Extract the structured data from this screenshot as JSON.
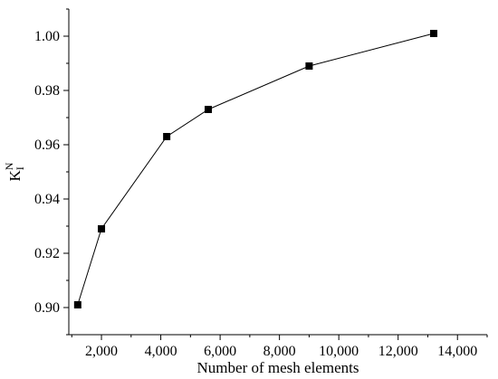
{
  "chart_data": {
    "type": "line",
    "title": "",
    "xlabel": "Number of mesh elements",
    "ylabel": {
      "main": "K",
      "sub": "I",
      "sup": "N"
    },
    "xlim": [
      900,
      15000
    ],
    "ylim": [
      0.89,
      1.01
    ],
    "xticks": [
      2000,
      4000,
      6000,
      8000,
      10000,
      12000,
      14000
    ],
    "xtick_labels": [
      "2,000",
      "4,000",
      "6,000",
      "8,000",
      "10,000",
      "12,000",
      "14,000"
    ],
    "yticks": [
      0.9,
      0.92,
      0.94,
      0.96,
      0.98,
      1.0
    ],
    "ytick_labels": [
      "0.90",
      "0.92",
      "0.94",
      "0.96",
      "0.98",
      "1.00"
    ],
    "grid": false,
    "marker": "square",
    "series": [
      {
        "x": [
          1200,
          2000,
          4200,
          5600,
          9000,
          13200
        ],
        "y": [
          0.901,
          0.929,
          0.963,
          0.973,
          0.989,
          1.001
        ]
      }
    ]
  },
  "colors": {
    "line": "#000000",
    "marker": "#000000",
    "axis": "#000000",
    "background": "#ffffff"
  }
}
